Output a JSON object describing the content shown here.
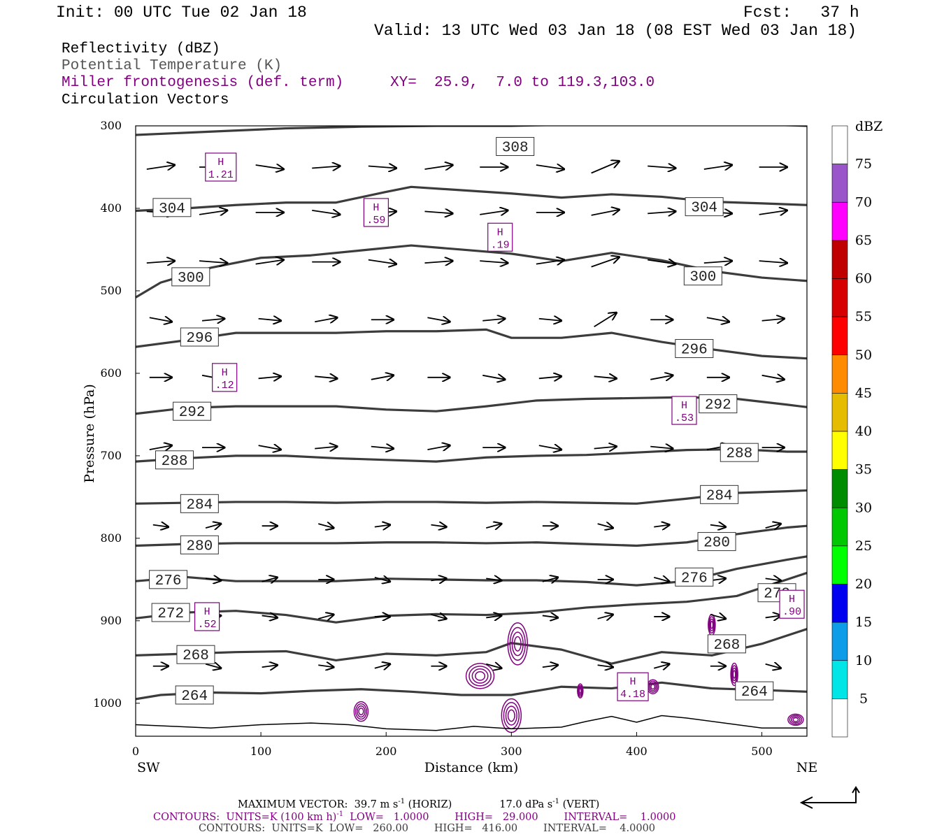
{
  "header": {
    "init": "Init: 00 UTC Tue 02 Jan 18",
    "fcst": "Fcst:   37 h",
    "valid": "Valid: 13 UTC Wed 03 Jan 18 (08 EST Wed 03 Jan 18)"
  },
  "fields": {
    "reflectivity": "Reflectivity (dBZ)",
    "theta": "Potential Temperature (K)",
    "frontogenesis": "Miller frontogenesis (def. term)",
    "xy": "XY=  25.9,  7.0 to 119.3,103.0",
    "vectors": "Circulation Vectors"
  },
  "colors": {
    "theta": "#3c3c3c",
    "frontogenesis": "#800080",
    "vectors": "#000000"
  },
  "colorbar": {
    "unit": "dBZ",
    "ticks": [
      "5",
      "10",
      "15",
      "20",
      "25",
      "30",
      "35",
      "40",
      "45",
      "50",
      "55",
      "60",
      "65",
      "70",
      "75"
    ],
    "bins": [
      "#ffffff",
      "#00e5e5",
      "#0c9ce8",
      "#0000f0",
      "#00ff00",
      "#00c800",
      "#008c00",
      "#ffff00",
      "#e5bc00",
      "#ff8c00",
      "#ff0000",
      "#d60000",
      "#c00000",
      "#ff00ff",
      "#9955c9",
      "#ffffff"
    ]
  },
  "footer": {
    "max_vector": "MAXIMUM VECTOR:  39.7 m s",
    "max_vector_exp": "-1",
    "max_vector_horiz": " (HORIZ)",
    "max_vector_vert": "17.0 dPa s",
    "max_vector_vert_exp": "-1",
    "max_vector_vert_tail": " (VERT)",
    "contours_fgen": "CONTOURS:  UNITS=K (100 km h)",
    "contours_fgen_exp": "-1",
    "contours_fgen_tail": "  LOW=   1.0000        HIGH=   29.000        INTERVAL=    1.0000",
    "contours_theta": "CONTOURS:  UNITS=K  LOW=   260.00        HIGH=   416.00        INTERVAL=    4.0000"
  },
  "chart_data": {
    "type": "line",
    "title": "",
    "xlabel": "Distance (km)",
    "ylabel": "Pressure (hPa)",
    "xlim": [
      0,
      536
    ],
    "ylim": [
      1040,
      300
    ],
    "y_scale": "linear",
    "x_ticks": [
      "0",
      "100",
      "200",
      "300",
      "400",
      "500"
    ],
    "y_ticks": [
      "300",
      "400",
      "500",
      "600",
      "700",
      "800",
      "900",
      "1000"
    ],
    "left_end_label": "SW",
    "right_end_label": "NE",
    "theta_contours": [
      {
        "name": "264",
        "x": [
          0,
          20,
          60,
          100,
          140,
          180,
          220,
          260,
          300,
          340,
          380,
          420,
          460,
          500,
          536
        ],
        "y": [
          995,
          990,
          987,
          988,
          985,
          983,
          986,
          990,
          990,
          980,
          982,
          975,
          982,
          984,
          986
        ]
      },
      {
        "name": "268",
        "x": [
          0,
          40,
          80,
          120,
          160,
          200,
          240,
          280,
          300,
          340,
          380,
          420,
          460,
          500,
          536
        ],
        "y": [
          942,
          940,
          938,
          937,
          948,
          940,
          942,
          938,
          927,
          935,
          952,
          938,
          942,
          928,
          910
        ]
      },
      {
        "name": "272",
        "x": [
          0,
          40,
          80,
          120,
          160,
          200,
          240,
          280,
          320,
          360,
          400,
          440,
          480,
          520,
          536
        ],
        "y": [
          897,
          890,
          888,
          893,
          902,
          894,
          892,
          893,
          890,
          884,
          880,
          877,
          870,
          850,
          842
        ]
      },
      {
        "name": "276",
        "x": [
          0,
          40,
          80,
          120,
          160,
          200,
          240,
          280,
          320,
          360,
          400,
          440,
          480,
          520,
          536
        ],
        "y": [
          852,
          847,
          852,
          852,
          852,
          849,
          850,
          851,
          851,
          853,
          857,
          852,
          837,
          826,
          822
        ]
      },
      {
        "name": "280",
        "x": [
          0,
          40,
          80,
          120,
          160,
          200,
          240,
          280,
          320,
          360,
          400,
          440,
          480,
          520,
          536
        ],
        "y": [
          809,
          807,
          806,
          806,
          806,
          805,
          805,
          806,
          805,
          807,
          809,
          805,
          795,
          787,
          785
        ]
      },
      {
        "name": "284",
        "x": [
          0,
          40,
          80,
          120,
          160,
          200,
          240,
          280,
          320,
          360,
          400,
          440,
          480,
          520,
          536
        ],
        "y": [
          758,
          757,
          756,
          756,
          757,
          756,
          756,
          757,
          756,
          757,
          758,
          752,
          745,
          743,
          742
        ]
      },
      {
        "name": "288",
        "x": [
          0,
          40,
          80,
          120,
          160,
          200,
          240,
          280,
          320,
          360,
          400,
          440,
          480,
          520,
          536
        ],
        "y": [
          707,
          703,
          700,
          700,
          703,
          705,
          707,
          702,
          700,
          699,
          696,
          693,
          692,
          695,
          695
        ]
      },
      {
        "name": "292",
        "x": [
          0,
          40,
          80,
          120,
          160,
          200,
          240,
          280,
          320,
          360,
          400,
          440,
          480,
          520,
          536
        ],
        "y": [
          649,
          642,
          640,
          640,
          640,
          644,
          646,
          640,
          633,
          631,
          630,
          629,
          631,
          638,
          641
        ]
      },
      {
        "name": "296",
        "x": [
          0,
          40,
          80,
          120,
          160,
          200,
          240,
          280,
          300,
          340,
          380,
          420,
          460,
          500,
          536
        ],
        "y": [
          568,
          560,
          551,
          551,
          551,
          549,
          549,
          547,
          557,
          557,
          551,
          562,
          571,
          579,
          582
        ]
      },
      {
        "name": "300",
        "x": [
          0,
          20,
          60,
          100,
          140,
          180,
          220,
          260,
          300,
          340,
          380,
          420,
          460,
          500,
          536
        ],
        "y": [
          508,
          490,
          472,
          460,
          457,
          451,
          445,
          450,
          455,
          464,
          454,
          463,
          476,
          484,
          488
        ]
      },
      {
        "name": "304",
        "x": [
          0,
          40,
          80,
          120,
          160,
          200,
          220,
          260,
          300,
          340,
          380,
          420,
          460,
          500,
          536
        ],
        "y": [
          403,
          400,
          396,
          393,
          393,
          380,
          374,
          378,
          382,
          387,
          383,
          386,
          392,
          394,
          396
        ]
      },
      {
        "name": "308",
        "x": [
          0,
          60,
          120,
          180,
          240,
          300,
          360,
          420,
          480,
          536
        ],
        "y": [
          311,
          307,
          303,
          301,
          300,
          300,
          298,
          297,
          297,
          300
        ]
      }
    ],
    "theta_label_positions": [
      {
        "label": "264",
        "x": 47,
        "p": 990
      },
      {
        "label": "264",
        "x": 494,
        "p": 985
      },
      {
        "label": "268",
        "x": 48,
        "p": 941
      },
      {
        "label": "268",
        "x": 472,
        "p": 928
      },
      {
        "label": "272",
        "x": 28,
        "p": 890
      },
      {
        "label": "272",
        "x": 512,
        "p": 866
      },
      {
        "label": "276",
        "x": 26,
        "p": 850
      },
      {
        "label": "276",
        "x": 446,
        "p": 847
      },
      {
        "label": "280",
        "x": 51,
        "p": 808
      },
      {
        "label": "280",
        "x": 464,
        "p": 804
      },
      {
        "label": "284",
        "x": 51,
        "p": 758
      },
      {
        "label": "284",
        "x": 466,
        "p": 747
      },
      {
        "label": "288",
        "x": 31,
        "p": 705
      },
      {
        "label": "288",
        "x": 482,
        "p": 696
      },
      {
        "label": "292",
        "x": 45,
        "p": 646
      },
      {
        "label": "292",
        "x": 465,
        "p": 637
      },
      {
        "label": "296",
        "x": 51,
        "p": 556
      },
      {
        "label": "296",
        "x": 446,
        "p": 570
      },
      {
        "label": "300",
        "x": 44,
        "p": 483
      },
      {
        "label": "300",
        "x": 453,
        "p": 482
      },
      {
        "label": "304",
        "x": 29,
        "p": 399
      },
      {
        "label": "304",
        "x": 454,
        "p": 398
      },
      {
        "label": "308",
        "x": 303,
        "p": 325
      }
    ],
    "frontogenesis_maxima": [
      {
        "label": "H",
        "value": "1.21",
        "x": 68,
        "p": 350
      },
      {
        "label": "H",
        "value": ".59",
        "x": 192,
        "p": 405
      },
      {
        "label": "H",
        "value": ".19",
        "x": 291,
        "p": 435
      },
      {
        "label": "H",
        "value": ".12",
        "x": 71,
        "p": 605
      },
      {
        "label": "H",
        "value": ".53",
        "x": 438,
        "p": 645
      },
      {
        "label": "H",
        "value": ".52",
        "x": 57,
        "p": 895
      },
      {
        "label": "H",
        "value": "4.18",
        "x": 397,
        "p": 980
      },
      {
        "label": "H",
        "value": ".90",
        "x": 524,
        "p": 880
      }
    ],
    "vector_levels_p": [
      350,
      405,
      465,
      535,
      605,
      690,
      785,
      850,
      895,
      955
    ],
    "vector_columns_x": [
      20,
      62,
      107,
      152,
      197,
      242,
      286,
      331,
      375,
      420,
      465,
      509
    ],
    "max_vector_horiz": 39.7,
    "max_vector_vert": 17.0
  }
}
